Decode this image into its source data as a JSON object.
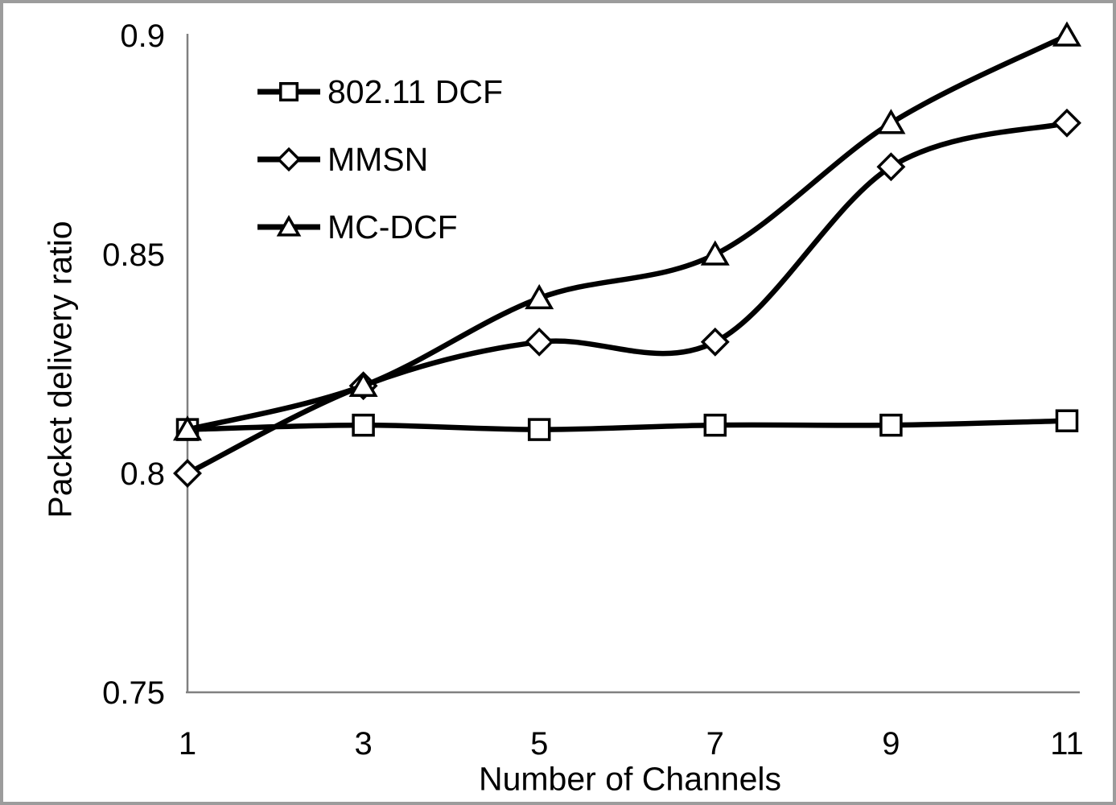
{
  "chart_data": {
    "type": "line",
    "x": [
      1,
      3,
      5,
      7,
      9,
      11
    ],
    "xtick_labels": [
      "1",
      "3",
      "5",
      "7",
      "9",
      "11"
    ],
    "series": [
      {
        "name": "802.11 DCF",
        "marker": "square",
        "values": [
          0.81,
          0.811,
          0.81,
          0.811,
          0.811,
          0.812
        ]
      },
      {
        "name": "MMSN",
        "marker": "diamond",
        "values": [
          0.8,
          0.82,
          0.83,
          0.83,
          0.87,
          0.88
        ]
      },
      {
        "name": "MC-DCF",
        "marker": "triangle",
        "values": [
          0.81,
          0.82,
          0.84,
          0.85,
          0.88,
          0.9
        ]
      }
    ],
    "xlabel": "Number of Channels",
    "ylabel": "Packet delivery ratio",
    "ylim": [
      0.75,
      0.9
    ],
    "yticks": [
      0.9,
      0.85,
      0.8,
      0.75
    ],
    "ytick_labels": [
      "0.9",
      "0.85",
      "0.8",
      "0.75"
    ],
    "grid": false,
    "smooth": true,
    "legend_position": "top-left-inside",
    "line_color": "#000000",
    "marker_fill": "#ffffff",
    "axis_color": "#808080",
    "border_color": "#9c9c9c",
    "background": "#ffffff"
  }
}
